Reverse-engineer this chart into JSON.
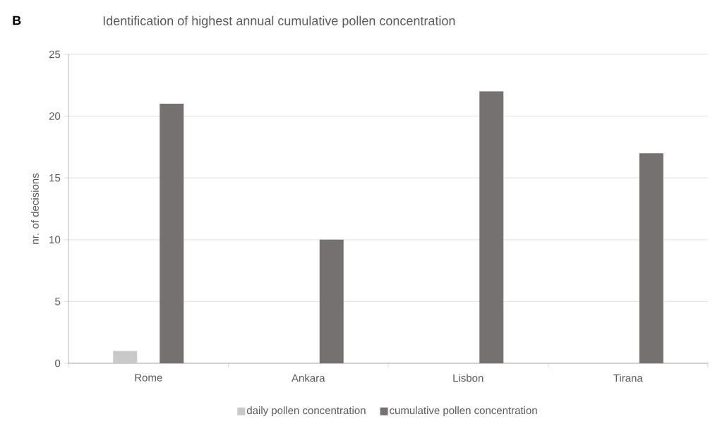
{
  "chart_data": {
    "type": "bar",
    "title": "Identification of highest annual cumulative pollen concentration",
    "annotations": [
      "B"
    ],
    "ylabel": "nr. of decisions",
    "categories": [
      "Rome",
      "Ankara",
      "Lisbon",
      "Tirana"
    ],
    "series": [
      {
        "name": "daily pollen concentration",
        "color": "#c9c9c9",
        "values": [
          1,
          0,
          0,
          0
        ]
      },
      {
        "name": "cumulative pollen concentration",
        "color": "#767171",
        "values": [
          21,
          10,
          22,
          17
        ]
      }
    ],
    "ylim": [
      0,
      25
    ],
    "yticks": [
      0,
      5,
      10,
      15,
      20,
      25
    ],
    "grid": "y",
    "legend": "bottom"
  }
}
